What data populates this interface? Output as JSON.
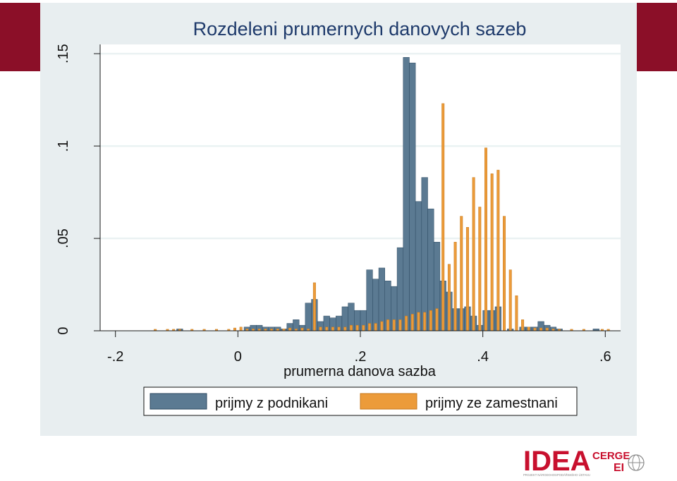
{
  "colors": {
    "brand": "#8b0f28",
    "panel_background": "#e8eef0",
    "plot_background": "#ffffff",
    "series_1": "#5b7a92",
    "series_2": "#ec9b3a",
    "logo_red": "#c8102e",
    "logo_gray": "#8a8a8a"
  },
  "logo": {
    "main_text": "IDEA",
    "cerge_text": "CERGE",
    "ei_text": "EI",
    "subtitle": "PROJEKT NÁRODOHOSPODÁŘSKÉHO ÚSTAVU"
  },
  "chart_data": {
    "type": "bar",
    "title": "Rozdeleni prumernych danovych sazeb",
    "xlabel": "prumerna danova sazba",
    "ylabel": "",
    "xlim": [
      -0.225,
      0.625
    ],
    "ylim": [
      0,
      0.155
    ],
    "grid": true,
    "legend_position": "bottom",
    "x_ticks": [
      {
        "value": -0.2,
        "label": "-.2"
      },
      {
        "value": 0,
        "label": "0"
      },
      {
        "value": 0.2,
        "label": ".2"
      },
      {
        "value": 0.4,
        "label": ".4"
      },
      {
        "value": 0.6,
        "label": ".6"
      }
    ],
    "y_ticks": [
      {
        "value": 0,
        "label": "0"
      },
      {
        "value": 0.05,
        "label": ".05"
      },
      {
        "value": 0.1,
        "label": ".1"
      },
      {
        "value": 0.15,
        "label": ".15"
      }
    ],
    "series": [
      {
        "name": "prijmy z podnikani",
        "bin_width": 0.01,
        "bins": [
          [
            -0.095,
            0.001
          ],
          [
            0.015,
            0.002
          ],
          [
            0.025,
            0.003
          ],
          [
            0.035,
            0.003
          ],
          [
            0.045,
            0.002
          ],
          [
            0.055,
            0.002
          ],
          [
            0.065,
            0.002
          ],
          [
            0.075,
            0.001
          ],
          [
            0.085,
            0.004
          ],
          [
            0.095,
            0.006
          ],
          [
            0.105,
            0.003
          ],
          [
            0.115,
            0.015
          ],
          [
            0.125,
            0.017
          ],
          [
            0.135,
            0.005
          ],
          [
            0.145,
            0.008
          ],
          [
            0.155,
            0.007
          ],
          [
            0.165,
            0.008
          ],
          [
            0.175,
            0.013
          ],
          [
            0.185,
            0.015
          ],
          [
            0.195,
            0.011
          ],
          [
            0.205,
            0.011
          ],
          [
            0.215,
            0.033
          ],
          [
            0.225,
            0.028
          ],
          [
            0.235,
            0.034
          ],
          [
            0.245,
            0.027
          ],
          [
            0.255,
            0.024
          ],
          [
            0.265,
            0.045
          ],
          [
            0.275,
            0.148
          ],
          [
            0.285,
            0.145
          ],
          [
            0.295,
            0.07
          ],
          [
            0.305,
            0.083
          ],
          [
            0.315,
            0.066
          ],
          [
            0.325,
            0.048
          ],
          [
            0.335,
            0.027
          ],
          [
            0.345,
            0.021
          ],
          [
            0.355,
            0.012
          ],
          [
            0.365,
            0.012
          ],
          [
            0.375,
            0.013
          ],
          [
            0.385,
            0.008
          ],
          [
            0.395,
            0.003
          ],
          [
            0.405,
            0.011
          ],
          [
            0.415,
            0.011
          ],
          [
            0.425,
            0.013
          ],
          [
            0.445,
            0.001
          ],
          [
            0.465,
            0.002
          ],
          [
            0.475,
            0.002
          ],
          [
            0.485,
            0.002
          ],
          [
            0.495,
            0.005
          ],
          [
            0.505,
            0.003
          ],
          [
            0.515,
            0.002
          ],
          [
            0.525,
            0.001
          ],
          [
            0.585,
            0.001
          ]
        ]
      },
      {
        "name": "prijmy ze zamestnani",
        "bin_width": 0.004,
        "bins": [
          [
            -0.135,
            0.0008
          ],
          [
            -0.115,
            0.0008
          ],
          [
            -0.105,
            0.0008
          ],
          [
            -0.095,
            0.0008
          ],
          [
            -0.075,
            0.0008
          ],
          [
            -0.055,
            0.0008
          ],
          [
            -0.035,
            0.0008
          ],
          [
            -0.015,
            0.0008
          ],
          [
            -0.005,
            0.0015
          ],
          [
            0.005,
            0.002
          ],
          [
            0.015,
            0.001
          ],
          [
            0.025,
            0.001
          ],
          [
            0.035,
            0.001
          ],
          [
            0.045,
            0.001
          ],
          [
            0.055,
            0.001
          ],
          [
            0.065,
            0.001
          ],
          [
            0.075,
            0.001
          ],
          [
            0.085,
            0.0015
          ],
          [
            0.095,
            0.001
          ],
          [
            0.105,
            0.0015
          ],
          [
            0.115,
            0.001
          ],
          [
            0.125,
            0.026
          ],
          [
            0.135,
            0.002
          ],
          [
            0.145,
            0.002
          ],
          [
            0.155,
            0.002
          ],
          [
            0.165,
            0.002
          ],
          [
            0.175,
            0.002
          ],
          [
            0.185,
            0.003
          ],
          [
            0.195,
            0.003
          ],
          [
            0.205,
            0.003
          ],
          [
            0.215,
            0.004
          ],
          [
            0.225,
            0.004
          ],
          [
            0.235,
            0.005
          ],
          [
            0.245,
            0.006
          ],
          [
            0.255,
            0.006
          ],
          [
            0.265,
            0.006
          ],
          [
            0.275,
            0.008
          ],
          [
            0.285,
            0.009
          ],
          [
            0.295,
            0.01
          ],
          [
            0.305,
            0.01
          ],
          [
            0.315,
            0.011
          ],
          [
            0.325,
            0.012
          ],
          [
            0.335,
            0.123
          ],
          [
            0.345,
            0.036
          ],
          [
            0.355,
            0.048
          ],
          [
            0.365,
            0.062
          ],
          [
            0.375,
            0.056
          ],
          [
            0.385,
            0.083
          ],
          [
            0.395,
            0.067
          ],
          [
            0.405,
            0.099
          ],
          [
            0.415,
            0.085
          ],
          [
            0.425,
            0.087
          ],
          [
            0.435,
            0.062
          ],
          [
            0.445,
            0.033
          ],
          [
            0.455,
            0.019
          ],
          [
            0.465,
            0.006
          ],
          [
            0.475,
            0.002
          ],
          [
            0.485,
            0.0015
          ],
          [
            0.495,
            0.0015
          ],
          [
            0.505,
            0.0015
          ],
          [
            0.515,
            0.001
          ],
          [
            0.525,
            0.0008
          ],
          [
            0.545,
            0.0008
          ],
          [
            0.565,
            0.0008
          ],
          [
            0.595,
            0.0008
          ],
          [
            0.605,
            0.0008
          ]
        ]
      }
    ]
  }
}
